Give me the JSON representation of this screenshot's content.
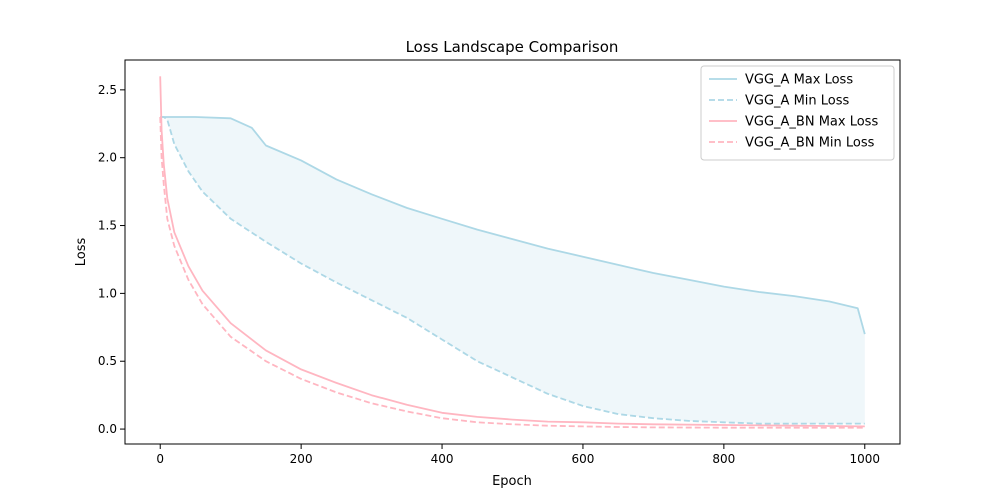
{
  "chart_data": {
    "type": "line",
    "title": "Loss Landscape Comparison",
    "xlabel": "Epoch",
    "ylabel": "Loss",
    "xlim": [
      -50,
      1050
    ],
    "ylim": [
      -0.11,
      2.72
    ],
    "xticks": [
      0,
      200,
      400,
      600,
      800,
      1000
    ],
    "yticks": [
      0.0,
      0.5,
      1.0,
      1.5,
      2.0,
      2.5
    ],
    "grid": false,
    "legend_position": "top-right",
    "series": [
      {
        "name": "VGG_A Max Loss",
        "color": "#add8e6",
        "style": "solid",
        "x": [
          0,
          10,
          50,
          100,
          130,
          150,
          200,
          250,
          300,
          350,
          400,
          450,
          500,
          550,
          600,
          650,
          700,
          750,
          800,
          850,
          900,
          950,
          990,
          1000
        ],
        "values": [
          2.3,
          2.3,
          2.3,
          2.29,
          2.22,
          2.09,
          1.98,
          1.84,
          1.73,
          1.63,
          1.55,
          1.47,
          1.4,
          1.33,
          1.27,
          1.21,
          1.15,
          1.1,
          1.05,
          1.01,
          0.98,
          0.94,
          0.89,
          0.7
        ]
      },
      {
        "name": "VGG_A Min Loss",
        "color": "#add8e6",
        "style": "dashed",
        "x": [
          0,
          5,
          10,
          20,
          40,
          60,
          100,
          150,
          200,
          250,
          300,
          350,
          400,
          450,
          500,
          550,
          600,
          650,
          700,
          750,
          800,
          850,
          900,
          950,
          1000
        ],
        "values": [
          2.3,
          2.3,
          2.28,
          2.1,
          1.9,
          1.75,
          1.55,
          1.38,
          1.22,
          1.08,
          0.95,
          0.82,
          0.66,
          0.5,
          0.38,
          0.26,
          0.17,
          0.11,
          0.08,
          0.06,
          0.05,
          0.04,
          0.04,
          0.04,
          0.04
        ]
      },
      {
        "name": "VGG_A_BN Max Loss",
        "color": "#ffb6c1",
        "style": "solid",
        "x": [
          0,
          2,
          5,
          10,
          20,
          40,
          60,
          100,
          150,
          200,
          250,
          300,
          350,
          400,
          450,
          500,
          550,
          600,
          650,
          700,
          800,
          900,
          1000
        ],
        "values": [
          2.6,
          2.2,
          1.95,
          1.7,
          1.45,
          1.2,
          1.02,
          0.78,
          0.58,
          0.44,
          0.34,
          0.25,
          0.18,
          0.12,
          0.09,
          0.07,
          0.055,
          0.05,
          0.04,
          0.035,
          0.03,
          0.025,
          0.02
        ]
      },
      {
        "name": "VGG_A_BN Min Loss",
        "color": "#ffb6c1",
        "style": "dashed",
        "x": [
          0,
          2,
          5,
          10,
          20,
          40,
          60,
          100,
          150,
          200,
          250,
          300,
          350,
          400,
          450,
          500,
          550,
          600,
          650,
          700,
          800,
          900,
          1000
        ],
        "values": [
          2.3,
          2.0,
          1.8,
          1.55,
          1.35,
          1.1,
          0.92,
          0.68,
          0.5,
          0.37,
          0.27,
          0.19,
          0.13,
          0.08,
          0.05,
          0.035,
          0.025,
          0.02,
          0.015,
          0.012,
          0.01,
          0.01,
          0.01
        ]
      }
    ],
    "fills": [
      {
        "between": [
          "VGG_A Max Loss",
          "VGG_A Min Loss"
        ],
        "color": "#add8e6",
        "opacity": 0.2
      }
    ]
  }
}
